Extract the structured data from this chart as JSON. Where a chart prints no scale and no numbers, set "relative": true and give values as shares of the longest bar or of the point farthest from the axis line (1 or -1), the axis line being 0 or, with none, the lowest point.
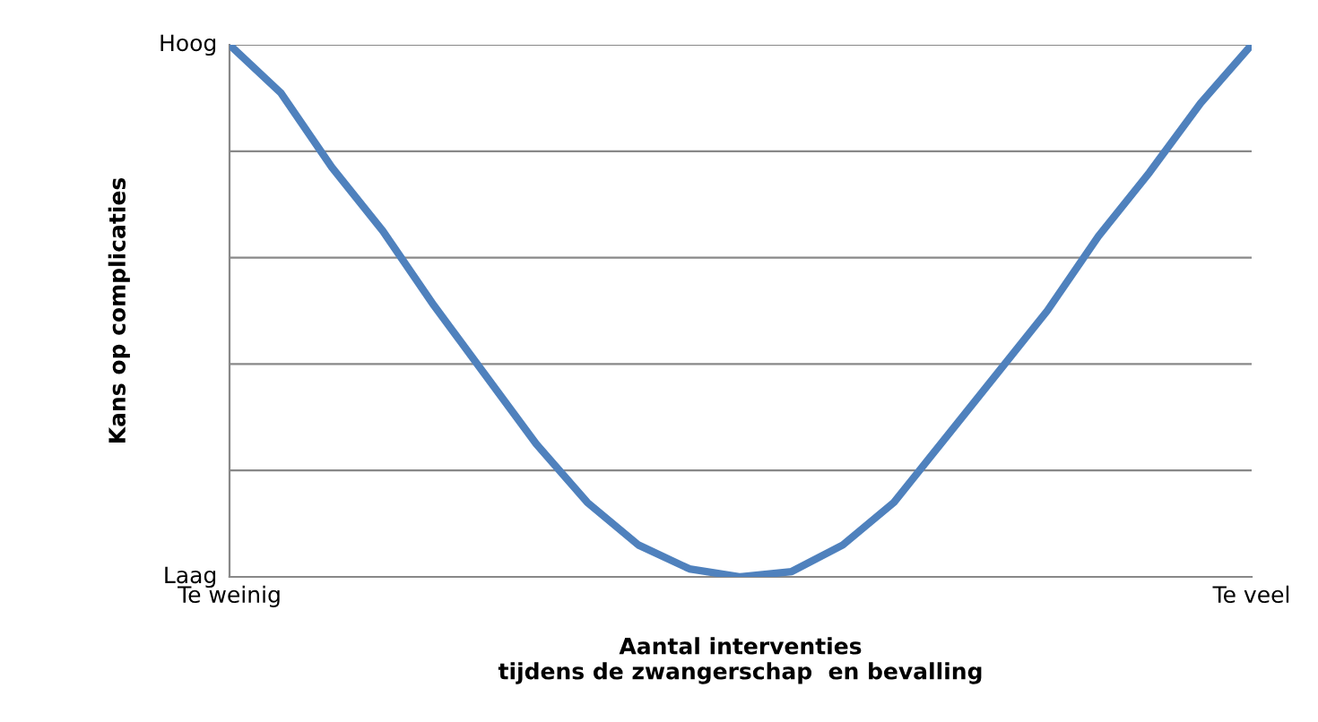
{
  "chart_data": {
    "type": "line",
    "xlabel": "Aantal interventies\ntijdens de zwangerschap  en bevalling",
    "ylabel": "Kans op complicaties",
    "relative": true,
    "categories": [
      "Te weinig",
      null,
      null,
      null,
      null,
      null,
      null,
      null,
      null,
      null,
      null,
      null,
      null,
      null,
      null,
      null,
      null,
      null,
      null,
      null,
      "Te veel"
    ],
    "series": [
      {
        "color": "#4f81bd",
        "values": [
          1,
          0.91,
          0.77,
          0.65,
          0.51,
          0.38,
          0.25,
          0.14,
          0.06,
          0.015,
          0,
          0.01,
          0.06,
          0.14,
          0.26,
          0.38,
          0.5,
          0.64,
          0.76,
          0.89,
          1
        ]
      }
    ],
    "annotations": [
      "Hoog",
      "Laag"
    ],
    "grid": "y",
    "marker": "none",
    "line_style": "solid"
  }
}
